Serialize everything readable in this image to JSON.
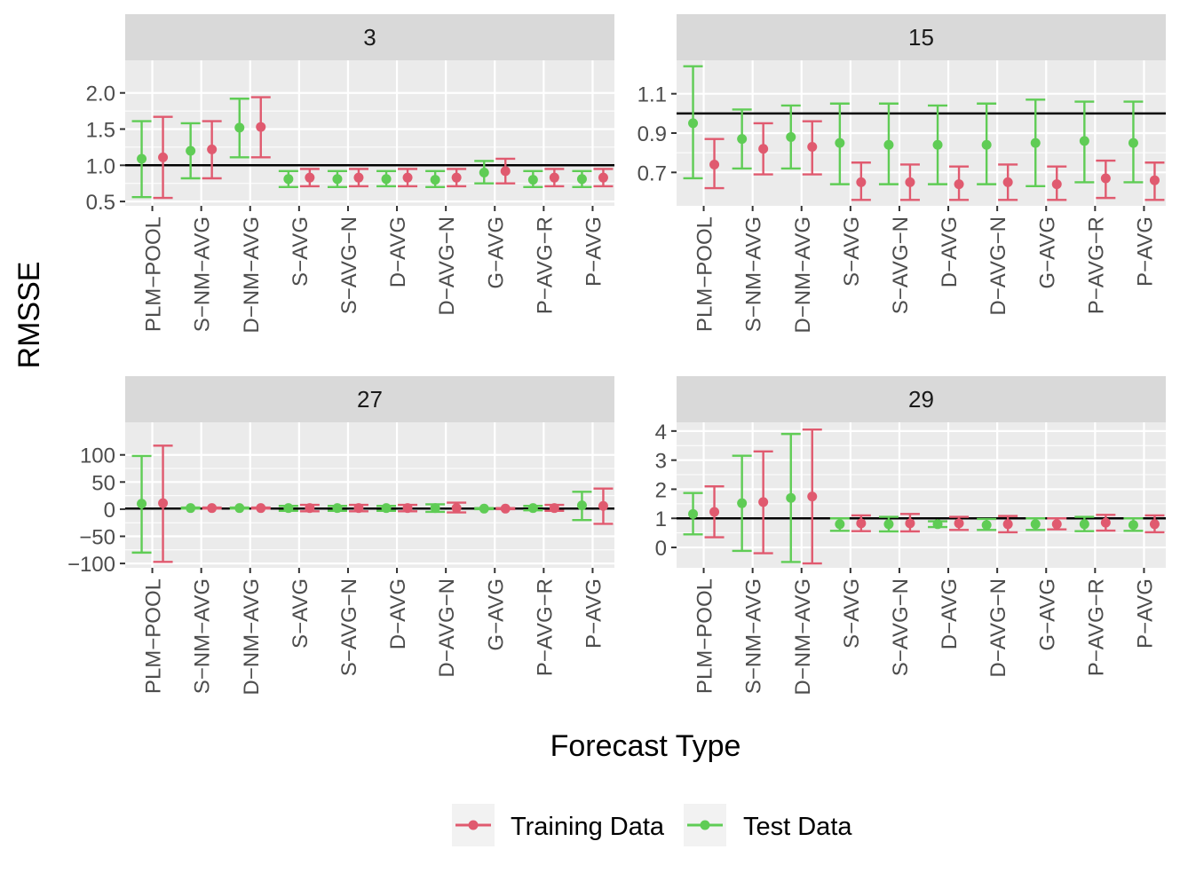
{
  "chart_data": {
    "type": "errorbar",
    "ylabel": "RMSSE",
    "xlabel": "Forecast Type",
    "categories": [
      "PLM−POOL",
      "S−NM−AVG",
      "D−NM−AVG",
      "S−AVG",
      "S−AVG−N",
      "D−AVG",
      "D−AVG−N",
      "G−AVG",
      "P−AVG−R",
      "P−AVG"
    ],
    "legend": {
      "position": "bottom",
      "items": [
        {
          "label": "Training Data",
          "color": "#E05A6F"
        },
        {
          "label": "Test Data",
          "color": "#5FCC55"
        }
      ]
    },
    "colors": {
      "training": "#E05A6F",
      "test": "#5FCC55",
      "panel": "#EBEBEB",
      "strip": "#D9D9D9",
      "grid": "#FFFFFF"
    },
    "panels": [
      {
        "title": "3",
        "ylim": [
          0.44,
          2.45
        ],
        "yticks": [
          0.5,
          1.0,
          1.5,
          2.0
        ],
        "ytick_labels": [
          "0.5",
          "1.0",
          "1.5",
          "2.0"
        ],
        "hline": 1.0,
        "series": [
          {
            "name": "Test Data",
            "mean": [
              1.09,
              1.2,
              1.52,
              0.81,
              0.81,
              0.81,
              0.8,
              0.9,
              0.8,
              0.81
            ],
            "lower": [
              0.56,
              0.82,
              1.11,
              0.7,
              0.7,
              0.71,
              0.7,
              0.75,
              0.7,
              0.7
            ],
            "upper": [
              1.61,
              1.58,
              1.92,
              0.92,
              0.92,
              0.92,
              0.92,
              1.06,
              0.92,
              0.92
            ]
          },
          {
            "name": "Training Data",
            "mean": [
              1.11,
              1.22,
              1.53,
              0.83,
              0.83,
              0.83,
              0.83,
              0.92,
              0.83,
              0.83
            ],
            "lower": [
              0.55,
              0.82,
              1.11,
              0.71,
              0.71,
              0.71,
              0.71,
              0.75,
              0.71,
              0.71
            ],
            "upper": [
              1.67,
              1.61,
              1.94,
              0.95,
              0.95,
              0.95,
              0.95,
              1.09,
              0.95,
              0.95
            ]
          }
        ]
      },
      {
        "title": "15",
        "ylim": [
          0.53,
          1.27
        ],
        "yticks": [
          0.7,
          0.9,
          1.1
        ],
        "ytick_labels": [
          "0.7",
          "0.9",
          "1.1"
        ],
        "hline": 1.0,
        "series": [
          {
            "name": "Test Data",
            "mean": [
              0.95,
              0.87,
              0.88,
              0.85,
              0.84,
              0.84,
              0.84,
              0.85,
              0.86,
              0.85
            ],
            "lower": [
              0.67,
              0.72,
              0.72,
              0.64,
              0.64,
              0.64,
              0.64,
              0.63,
              0.65,
              0.65
            ],
            "upper": [
              1.24,
              1.02,
              1.04,
              1.05,
              1.05,
              1.04,
              1.05,
              1.07,
              1.06,
              1.06
            ]
          },
          {
            "name": "Training Data",
            "mean": [
              0.74,
              0.82,
              0.83,
              0.65,
              0.65,
              0.64,
              0.65,
              0.64,
              0.67,
              0.66
            ],
            "lower": [
              0.62,
              0.69,
              0.69,
              0.56,
              0.56,
              0.56,
              0.56,
              0.56,
              0.57,
              0.56
            ],
            "upper": [
              0.87,
              0.95,
              0.96,
              0.75,
              0.74,
              0.73,
              0.74,
              0.73,
              0.76,
              0.75
            ]
          }
        ]
      },
      {
        "title": "27",
        "ylim": [
          -108,
          160
        ],
        "yticks": [
          -100,
          -50,
          0,
          50,
          100
        ],
        "ytick_labels": [
          "−100",
          "−50",
          "0",
          "50",
          "100"
        ],
        "hline": 1.0,
        "series": [
          {
            "name": "Test Data",
            "mean": [
              10,
              2,
              2,
              2,
              2,
              2,
              2,
              1,
              2,
              7
            ],
            "lower": [
              -80,
              1,
              1,
              -3,
              -3,
              -3,
              -5,
              0,
              -2,
              -20
            ],
            "upper": [
              98,
              3,
              3,
              6,
              6,
              6,
              9,
              2,
              6,
              32
            ]
          },
          {
            "name": "Training Data",
            "mean": [
              11,
              2,
              2,
              2,
              2,
              2,
              2,
              1,
              2,
              6
            ],
            "lower": [
              -97,
              1,
              1,
              -4,
              -4,
              -4,
              -6,
              0,
              -3,
              -27
            ],
            "upper": [
              117,
              3,
              3,
              8,
              8,
              8,
              12,
              2,
              8,
              38
            ]
          }
        ]
      },
      {
        "title": "29",
        "ylim": [
          -0.7,
          4.3
        ],
        "yticks": [
          0,
          1,
          2,
          3,
          4
        ],
        "ytick_labels": [
          "0",
          "1",
          "2",
          "3",
          "4"
        ],
        "hline": 1.0,
        "series": [
          {
            "name": "Test Data",
            "mean": [
              1.15,
              1.52,
              1.7,
              0.8,
              0.8,
              0.8,
              0.77,
              0.8,
              0.8,
              0.77
            ],
            "lower": [
              0.45,
              -0.12,
              -0.5,
              0.57,
              0.55,
              0.7,
              0.6,
              0.6,
              0.56,
              0.57
            ],
            "upper": [
              1.87,
              3.15,
              3.9,
              1.0,
              1.05,
              0.9,
              0.98,
              1.0,
              1.05,
              1.0
            ]
          },
          {
            "name": "Training Data",
            "mean": [
              1.22,
              1.56,
              1.75,
              0.83,
              0.83,
              0.83,
              0.8,
              0.8,
              0.85,
              0.8
            ],
            "lower": [
              0.35,
              -0.2,
              -0.55,
              0.56,
              0.55,
              0.6,
              0.52,
              0.62,
              0.58,
              0.52
            ],
            "upper": [
              2.1,
              3.3,
              4.05,
              1.1,
              1.15,
              1.05,
              1.08,
              1.0,
              1.12,
              1.1
            ]
          }
        ]
      }
    ]
  }
}
